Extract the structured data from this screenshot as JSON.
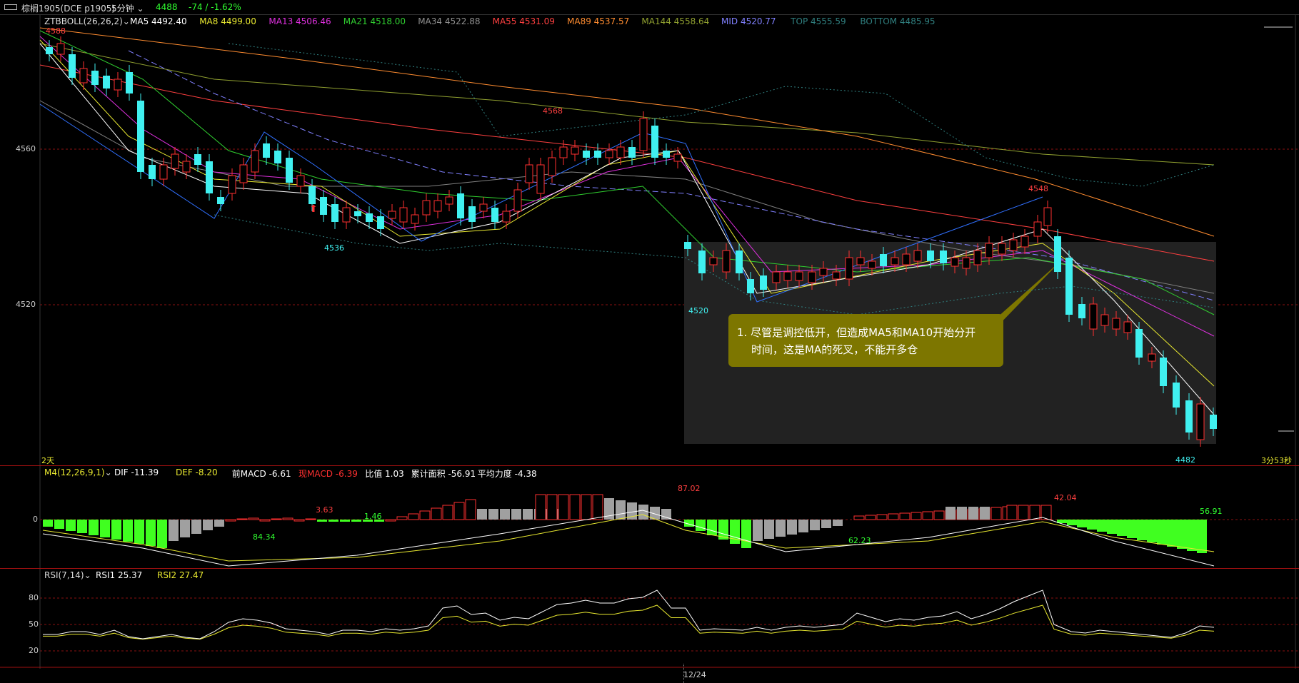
{
  "titlebar": {
    "menu_icon": "window-menu-icon",
    "instrument": "棕榈1905(DCE p1905)",
    "period": "5分钟",
    "last_price": "4488",
    "change": "-74 / -1.62%"
  },
  "main_panel": {
    "indicator_name": "ZTBBOLL(26,26,2)",
    "indicators": [
      {
        "label": "MA5 4492.40",
        "color": "#ffffff"
      },
      {
        "label": "MA8 4499.00",
        "color": "#e8e830"
      },
      {
        "label": "MA13 4506.46",
        "color": "#e030e0"
      },
      {
        "label": "MA21 4518.00",
        "color": "#30d030"
      },
      {
        "label": "MA34 4522.88",
        "color": "#909090"
      },
      {
        "label": "MA55 4531.09",
        "color": "#ff4040"
      },
      {
        "label": "MA89 4537.57",
        "color": "#ff8c30"
      },
      {
        "label": "MA144 4558.64",
        "color": "#90a030"
      },
      {
        "label": "MID 4520.77",
        "color": "#8080ff"
      },
      {
        "label": "TOP 4555.59",
        "color": "#308080"
      },
      {
        "label": "BOTTOM 4485.95",
        "color": "#308080"
      }
    ],
    "y_ticks": [
      "4560",
      "4520"
    ],
    "price_labels": {
      "p4588": "4588",
      "p4568": "4568",
      "p4536": "4536",
      "p4548": "4548",
      "p4520": "4520",
      "p4482": "4482"
    },
    "left_bottom_text": "2天",
    "right_bottom_text": "3分53秒"
  },
  "callout": {
    "line1": "1. 尽管是调控低开，但造成MA5和MA10开始分开",
    "line2": "时间，这是MA的死叉，不能开多仓"
  },
  "macd_panel": {
    "indicator_name": "M4(12,26,9,1)",
    "items": [
      {
        "label": "DIF -11.39",
        "color": "#ffffff"
      },
      {
        "label": "DEF -8.20",
        "color": "#e8e830"
      },
      {
        "label": "前MACD -6.61",
        "color": "#ffffff"
      },
      {
        "label": "现MACD -6.39",
        "color": "#ff3030"
      },
      {
        "label": "比值 1.03",
        "color": "#ffffff"
      },
      {
        "label": "累计面积 -56.91",
        "color": "#ffffff"
      },
      {
        "label": "平均力度 -4.38",
        "color": "#ffffff"
      }
    ],
    "zero_label": "0",
    "values": {
      "v1": "84.34",
      "v2": "3.63",
      "v3": "1.46",
      "v4": "87.02",
      "v5": "62.23",
      "v6": "42.04",
      "v7": "56.91"
    }
  },
  "rsi_panel": {
    "indicator_name": "RSI(7,14)",
    "items": [
      {
        "label": "RSI1 25.37",
        "color": "#ffffff"
      },
      {
        "label": "RSI2 27.47",
        "color": "#e8e830"
      }
    ],
    "y_ticks": [
      "80",
      "50",
      "20"
    ],
    "date_label": "12/24"
  },
  "colors": {
    "up": "#ff3030",
    "down": "#40f0f0",
    "macd_neg": "#40ff20",
    "macd_gray": "#a0a0a0"
  }
}
